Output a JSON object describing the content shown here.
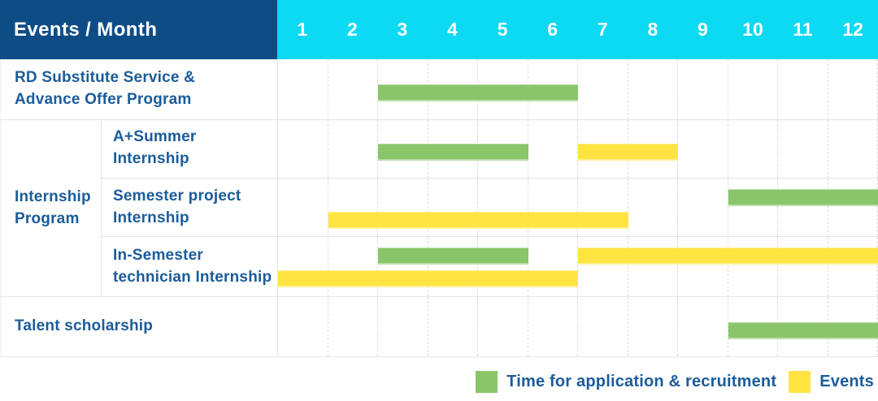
{
  "header": {
    "title": "Events / Month",
    "months": [
      "1",
      "2",
      "3",
      "4",
      "5",
      "6",
      "7",
      "8",
      "9",
      "10",
      "11",
      "12"
    ]
  },
  "table": {
    "group_label": [
      "Internship",
      "Program"
    ]
  },
  "legend": {
    "items": [
      {
        "label": "Time for application & recruitment",
        "color": "#8ac56b"
      },
      {
        "label": "Events",
        "color": "#ffe442"
      }
    ]
  },
  "colors": {
    "header_bg": "#0e4c86",
    "month_header_bg": "#0cd9f2",
    "green": "#8ac56b",
    "yellow": "#ffe442",
    "label_text": "#1b5c9b",
    "grid_solid": "#e6e6e6",
    "grid_dashed": "#dcdcdc"
  },
  "chart_data": {
    "type": "bar",
    "subtype": "gantt-timeline",
    "title": "Events / Month",
    "x": [
      1,
      2,
      3,
      4,
      5,
      6,
      7,
      8,
      9,
      10,
      11,
      12
    ],
    "xlabel": "Month",
    "legend_position": "bottom-right",
    "series_legend": [
      "Time for application & recruitment",
      "Events"
    ],
    "rows": [
      {
        "label": [
          "RD Substitute Service &",
          "Advance Offer Program"
        ],
        "group": "",
        "lanes": 1,
        "bars": [
          {
            "series": "Time for application & recruitment",
            "color": "green",
            "start_month": 3,
            "end_month": 6,
            "lane": 0
          }
        ]
      },
      {
        "label": [
          "A+Summer",
          "Internship"
        ],
        "group": "Internship Program",
        "lanes": 1,
        "bars": [
          {
            "series": "Time for application & recruitment",
            "color": "green",
            "start_month": 3,
            "end_month": 5,
            "lane": 0
          },
          {
            "series": "Events",
            "color": "yellow",
            "start_month": 7,
            "end_month": 8,
            "lane": 0
          }
        ]
      },
      {
        "label": [
          "Semester project",
          "Internship"
        ],
        "group": "Internship Program",
        "lanes": 2,
        "bars": [
          {
            "series": "Time for application & recruitment",
            "color": "green",
            "start_month": 10,
            "end_month": 12,
            "lane": 0
          },
          {
            "series": "Events",
            "color": "yellow",
            "start_month": 2,
            "end_month": 7,
            "lane": 1
          }
        ]
      },
      {
        "label": [
          "In-Semester",
          "technician Internship"
        ],
        "group": "Internship Program",
        "lanes": 2,
        "bars": [
          {
            "series": "Time for application & recruitment",
            "color": "green",
            "start_month": 3,
            "end_month": 5,
            "lane": 0
          },
          {
            "series": "Events",
            "color": "yellow",
            "start_month": 7,
            "end_month": 12,
            "lane": 0
          },
          {
            "series": "Events",
            "color": "yellow",
            "start_month": 1,
            "end_month": 6,
            "lane": 1
          }
        ]
      },
      {
        "label": [
          "Talent scholarship"
        ],
        "group": "",
        "lanes": 1,
        "bars": [
          {
            "series": "Time for application & recruitment",
            "color": "green",
            "start_month": 10,
            "end_month": 12,
            "lane": 0
          }
        ]
      }
    ]
  }
}
